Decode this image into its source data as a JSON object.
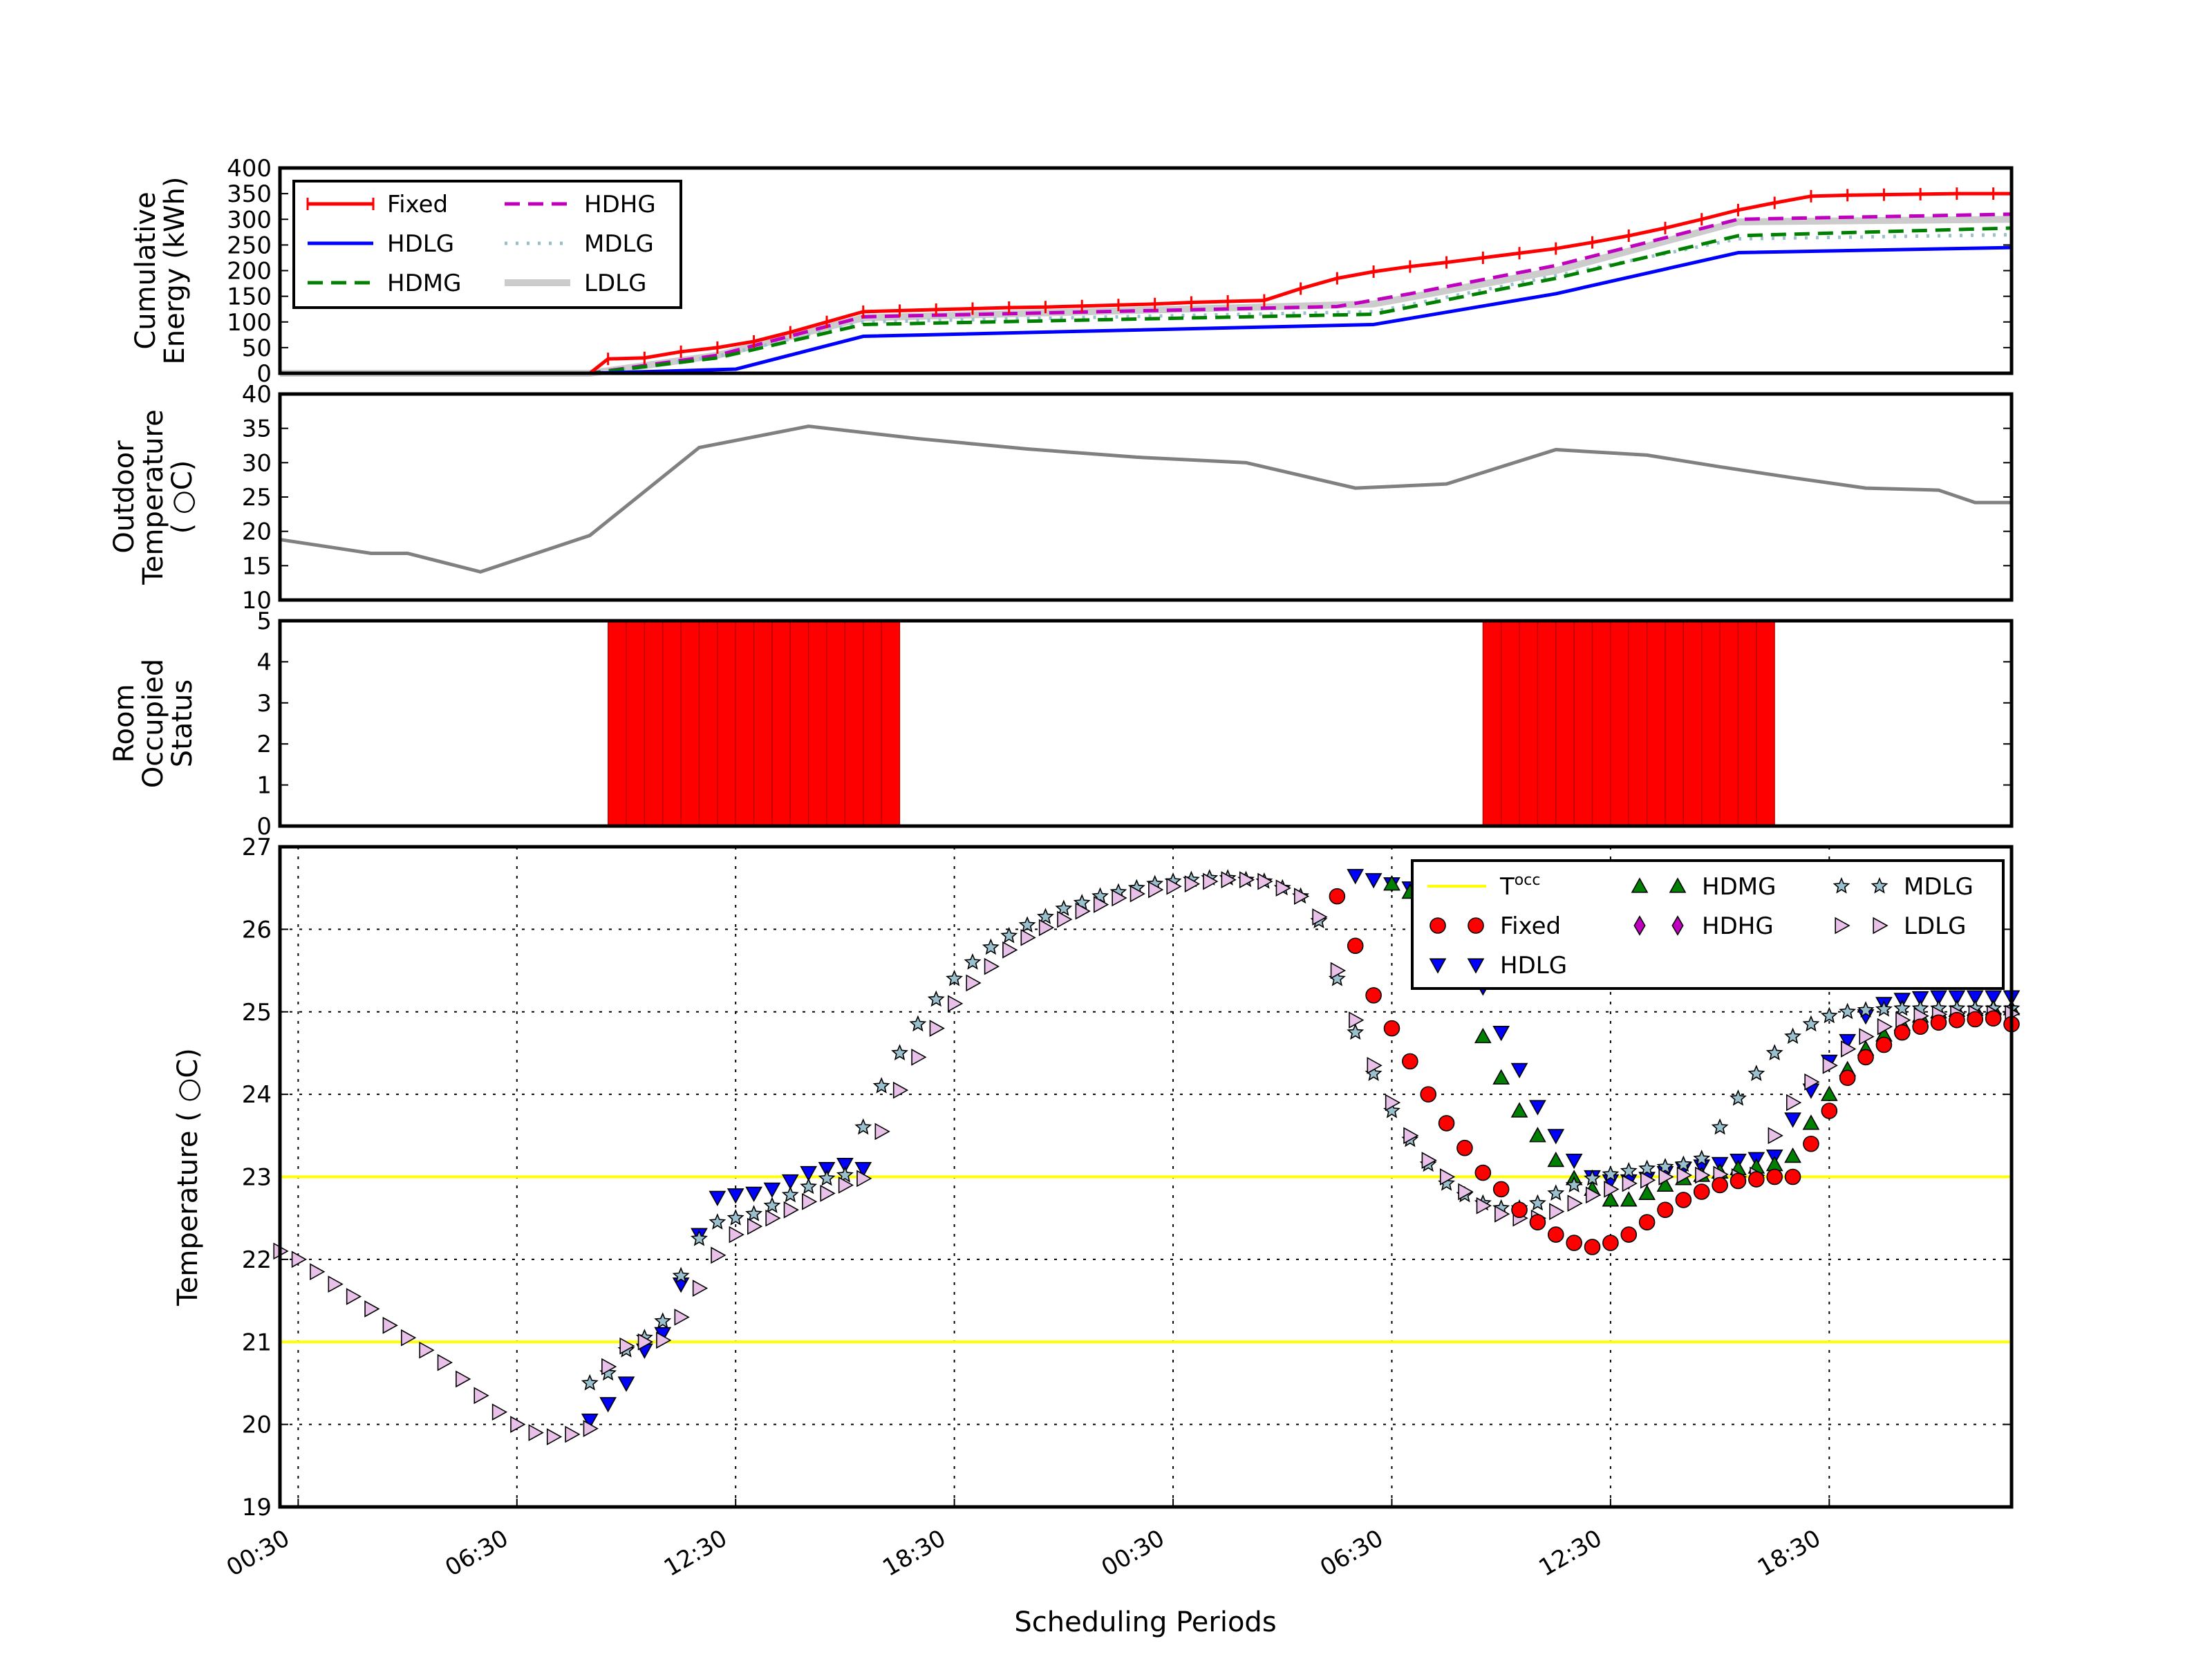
{
  "chart_data": [
    {
      "type": "line",
      "panel": "energy",
      "ylabel": [
        "Cumulative",
        "Energy (kWh)"
      ],
      "ylim": [
        0,
        400
      ],
      "yticks": [
        0,
        50,
        100,
        150,
        200,
        250,
        300,
        350,
        400
      ],
      "grid": false,
      "legend": "top-left, 2 columns",
      "series": [
        {
          "name": "Fixed",
          "color": "#ff0000",
          "style": "solid-plus",
          "x": [
            0,
            8.5,
            9,
            10,
            11,
            12,
            13,
            14,
            15,
            16,
            17,
            18,
            19,
            20,
            21,
            22,
            23,
            24,
            25,
            26,
            27,
            28,
            29,
            30,
            31,
            32,
            33,
            34,
            35,
            36,
            37,
            38,
            39,
            40,
            41,
            42,
            43,
            44,
            45,
            46,
            47,
            47.5
          ],
          "y": [
            0,
            0,
            28,
            30,
            42,
            50,
            62,
            80,
            100,
            120,
            122,
            124,
            126,
            128,
            129,
            131,
            133,
            135,
            138,
            140,
            142,
            165,
            185,
            198,
            208,
            216,
            225,
            234,
            243,
            255,
            268,
            283,
            300,
            318,
            332,
            345,
            347,
            348,
            349,
            350,
            350,
            350
          ]
        },
        {
          "name": "HDLG",
          "color": "#0000ff",
          "style": "solid",
          "x": [
            0,
            8.5,
            12.5,
            16,
            30,
            35,
            40,
            47.5
          ],
          "y": [
            0,
            0,
            8,
            72,
            95,
            155,
            235,
            245
          ]
        },
        {
          "name": "HDMG",
          "color": "#008000",
          "style": "dashed",
          "x": [
            0,
            8.5,
            12,
            16,
            30,
            35,
            40,
            47.5
          ],
          "y": [
            0,
            0,
            30,
            95,
            115,
            185,
            268,
            283
          ]
        },
        {
          "name": "HDHG",
          "color": "#bf00bf",
          "style": "dashed",
          "x": [
            0,
            8.5,
            12,
            16,
            29,
            31,
            35,
            40,
            47.5
          ],
          "y": [
            0,
            0,
            35,
            110,
            130,
            155,
            210,
            300,
            310
          ]
        },
        {
          "name": "MDLG",
          "color": "#9ac0cd",
          "style": "dotted",
          "x": [
            0,
            8.5,
            12,
            16,
            30,
            35,
            40,
            47.5
          ],
          "y": [
            0,
            0,
            33,
            100,
            120,
            190,
            262,
            270
          ]
        },
        {
          "name": "LDLG",
          "color": "#cccccc",
          "style": "solid-thick",
          "x": [
            0,
            8.5,
            12,
            16,
            30,
            35,
            40,
            47.5
          ],
          "y": [
            0,
            0,
            35,
            108,
            135,
            200,
            295,
            300
          ]
        }
      ]
    },
    {
      "type": "line",
      "panel": "outdoor",
      "ylabel": [
        "Outdoor",
        "Temperature",
        "( ○C)"
      ],
      "ylim": [
        10,
        40
      ],
      "yticks": [
        10,
        15,
        20,
        25,
        30,
        35,
        40
      ],
      "grid": false,
      "series": [
        {
          "color": "#808080",
          "x": [
            0,
            2.5,
            3.5,
            5.5,
            8.5,
            11.5,
            14.5,
            17.5,
            20.5,
            23.5,
            26.5,
            29.5,
            32,
            35,
            37.5,
            39.5,
            41.5,
            43.5,
            45.5,
            46.5,
            47.5
          ],
          "y": [
            18.8,
            16.8,
            16.8,
            14.1,
            19.4,
            32.2,
            35.3,
            33.5,
            32,
            30.8,
            30,
            26.3,
            26.9,
            31.9,
            31.1,
            29.4,
            27.8,
            26.3,
            26,
            24.2,
            24.2
          ]
        }
      ]
    },
    {
      "type": "bar",
      "panel": "occupancy",
      "ylabel": [
        "Room",
        "Occupied",
        "Status"
      ],
      "ylim": [
        0,
        5
      ],
      "yticks": [
        0,
        1,
        2,
        3,
        4,
        5
      ],
      "grid": false,
      "color": "#ff0000",
      "bar_start": [
        9,
        9.5,
        10,
        10.5,
        11,
        11.5,
        12,
        12.5,
        13,
        13.5,
        14,
        14.5,
        15,
        15.5,
        16,
        16.5,
        33,
        33.5,
        34,
        34.5,
        35,
        35.5,
        36,
        36.5,
        37,
        37.5,
        38,
        38.5,
        39,
        39.5,
        40,
        40.5
      ],
      "bar_value": 5
    },
    {
      "type": "scatter",
      "panel": "indoor",
      "xlabel": "Scheduling Periods",
      "ylabel": "Temperature ( ○C)",
      "ylim": [
        19,
        27
      ],
      "yticks": [
        19,
        20,
        21,
        22,
        23,
        24,
        25,
        26,
        27
      ],
      "xticks": [
        "00:30",
        "06:30",
        "12:30",
        "18:30",
        "00:30",
        "06:30",
        "12:30",
        "18:30"
      ],
      "grid": true,
      "legend": "top-right, 3 columns",
      "limits": {
        "name": "T^occ",
        "color": "#ffff00",
        "values": [
          21,
          23
        ]
      },
      "series": [
        {
          "name": "Fixed",
          "marker": "circle",
          "color": "#ff0000",
          "x": [
            29,
            29.5,
            30,
            30.5,
            31,
            31.5,
            32,
            32.5,
            33,
            33.5,
            34,
            34.5,
            35,
            35.5,
            36,
            36.5,
            37,
            37.5,
            38,
            38.5,
            39,
            39.5,
            40,
            40.5,
            41,
            41.5,
            42,
            42.5,
            43,
            43.5,
            44,
            44.5,
            45,
            45.5,
            46,
            46.5,
            47,
            47.5
          ],
          "y": [
            26.4,
            25.8,
            25.2,
            24.8,
            24.4,
            24,
            23.65,
            23.35,
            23.05,
            22.85,
            22.6,
            22.45,
            22.3,
            22.2,
            22.15,
            22.2,
            22.3,
            22.45,
            22.6,
            22.72,
            22.82,
            22.9,
            22.95,
            22.97,
            23,
            23,
            23.4,
            23.8,
            24.2,
            24.45,
            24.6,
            24.75,
            24.82,
            24.87,
            24.9,
            24.91,
            24.92,
            24.85
          ]
        },
        {
          "name": "HDLG",
          "marker": "triangle-down",
          "color": "#0000ff",
          "x": [
            8.5,
            9,
            9.5,
            10,
            10.5,
            11,
            11.5,
            12,
            12.5,
            13,
            13.5,
            14,
            14.5,
            15,
            15.5,
            16,
            29.5,
            30,
            30.5,
            31,
            31.5,
            32,
            32.5,
            33,
            33.5,
            34,
            34.5,
            35,
            35.5,
            36,
            36.5,
            37,
            37.5,
            38,
            38.5,
            39,
            39.5,
            40,
            40.5,
            41,
            41.5,
            42,
            42.5,
            43,
            43.5,
            44,
            44.5,
            45,
            45.5,
            46,
            46.5,
            47,
            47.5
          ],
          "y": [
            20.05,
            20.25,
            20.5,
            20.9,
            21.1,
            21.7,
            22.3,
            22.75,
            22.78,
            22.8,
            22.85,
            22.95,
            23.05,
            23.1,
            23.15,
            23.1,
            26.65,
            26.6,
            26.55,
            26.5,
            26.4,
            26.3,
            26.05,
            25.3,
            24.75,
            24.3,
            23.85,
            23.5,
            23.2,
            23,
            22.95,
            22.95,
            22.98,
            23.05,
            23.1,
            23.13,
            23.16,
            23.2,
            23.22,
            23.25,
            23.7,
            24.05,
            24.4,
            24.65,
            24.95,
            25.1,
            25.15,
            25.17,
            25.18,
            25.18,
            25.18,
            25.18,
            25.18
          ]
        },
        {
          "name": "HDMG",
          "marker": "triangle-up",
          "color": "#008000",
          "x": [
            30.5,
            31,
            31.5,
            32,
            32.5,
            33,
            33.5,
            34,
            34.5,
            35,
            35.5,
            36,
            36.5,
            37,
            37.5,
            38,
            38.5,
            39,
            39.5,
            40,
            40.5,
            41,
            41.5,
            42,
            42.5,
            43,
            43.5,
            44,
            44.5,
            45,
            45.5,
            46,
            46.5,
            47,
            47.5
          ],
          "y": [
            26.55,
            26.45,
            26.3,
            26.1,
            25.35,
            24.7,
            24.2,
            23.8,
            23.5,
            23.2,
            22.98,
            22.85,
            22.72,
            22.72,
            22.8,
            22.9,
            22.98,
            23.02,
            23.06,
            23.1,
            23.12,
            23.15,
            23.25,
            23.65,
            24,
            24.3,
            24.55,
            24.72,
            24.85,
            24.95,
            25,
            25.02,
            25.03,
            25.04,
            25.04
          ]
        },
        {
          "name": "HDHG",
          "marker": "diamond",
          "color": "#bf00bf",
          "x": [],
          "y": []
        },
        {
          "name": "MDLG",
          "marker": "star",
          "color": "#9ac0cd",
          "x": [
            8.5,
            9,
            9.5,
            10,
            10.5,
            11,
            11.5,
            12,
            12.5,
            13,
            13.5,
            14,
            14.5,
            15,
            15.5,
            16,
            16.5,
            17,
            17.5,
            18,
            18.5,
            19,
            19.5,
            20,
            20.5,
            21,
            21.5,
            22,
            22.5,
            23,
            23.5,
            24,
            24.5,
            25,
            25.5,
            26,
            26.5,
            27,
            27.5,
            28,
            28.5,
            29,
            29.5,
            30,
            30.5,
            31,
            31.5,
            32,
            32.5,
            33,
            33.5,
            34,
            34.5,
            35,
            35.5,
            36,
            36.5,
            37,
            37.5,
            38,
            38.5,
            39,
            39.5,
            40,
            40.5,
            41,
            41.5,
            42,
            42.5,
            43,
            43.5,
            44,
            44.5,
            45,
            45.5,
            46,
            46.5,
            47,
            47.5
          ],
          "y": [
            20.5,
            20.62,
            20.9,
            21.05,
            21.25,
            21.8,
            22.25,
            22.45,
            22.5,
            22.55,
            22.65,
            22.78,
            22.88,
            22.98,
            23.02,
            23.6,
            24.1,
            24.5,
            24.85,
            25.15,
            25.4,
            25.6,
            25.78,
            25.92,
            26.05,
            26.15,
            26.25,
            26.32,
            26.4,
            26.45,
            26.5,
            26.55,
            26.58,
            26.6,
            26.62,
            26.62,
            26.6,
            26.58,
            26.5,
            26.4,
            26.1,
            25.4,
            24.75,
            24.25,
            23.8,
            23.45,
            23.15,
            22.92,
            22.78,
            22.68,
            22.62,
            22.62,
            22.68,
            22.8,
            22.9,
            22.98,
            23.03,
            23.07,
            23.1,
            23.12,
            23.15,
            23.22,
            23.6,
            23.95,
            24.25,
            24.5,
            24.7,
            24.85,
            24.95,
            25,
            25.02,
            25.03,
            25.04,
            25.04,
            25.04,
            25.04,
            25.04,
            25.04,
            25.04
          ]
        },
        {
          "name": "LDLG",
          "marker": "triangle-right",
          "color": "#e8c0e8",
          "x": [
            0,
            0.5,
            1,
            1.5,
            2,
            2.5,
            3,
            3.5,
            4,
            4.5,
            5,
            5.5,
            6,
            6.5,
            7,
            7.5,
            8,
            8.5,
            9,
            9.5,
            10,
            10.5,
            11,
            11.5,
            12,
            12.5,
            13,
            13.5,
            14,
            14.5,
            15,
            15.5,
            16,
            16.5,
            17,
            17.5,
            18,
            18.5,
            19,
            19.5,
            20,
            20.5,
            21,
            21.5,
            22,
            22.5,
            23,
            23.5,
            24,
            24.5,
            25,
            25.5,
            26,
            26.5,
            27,
            27.5,
            28,
            28.5,
            29,
            29.5,
            30,
            30.5,
            31,
            31.5,
            32,
            32.5,
            33,
            33.5,
            34,
            34.5,
            35,
            35.5,
            36,
            36.5,
            37,
            37.5,
            38,
            38.5,
            39,
            39.5,
            40,
            40.5,
            41,
            41.5,
            42,
            42.5,
            43,
            43.5,
            44,
            44.5,
            45,
            45.5,
            46,
            46.5,
            47,
            47.5
          ],
          "y": [
            22.1,
            22,
            21.85,
            21.7,
            21.55,
            21.4,
            21.2,
            21.05,
            20.9,
            20.75,
            20.55,
            20.35,
            20.15,
            20,
            19.9,
            19.85,
            19.88,
            19.95,
            20.7,
            20.95,
            21,
            21.02,
            21.3,
            21.65,
            22.05,
            22.3,
            22.4,
            22.5,
            22.6,
            22.7,
            22.8,
            22.9,
            22.98,
            23.55,
            24.05,
            24.45,
            24.8,
            25.1,
            25.35,
            25.55,
            25.75,
            25.9,
            26.02,
            26.12,
            26.22,
            26.3,
            26.38,
            26.43,
            26.48,
            26.52,
            26.55,
            26.58,
            26.6,
            26.6,
            26.58,
            26.5,
            26.4,
            26.15,
            25.5,
            24.9,
            24.35,
            23.9,
            23.5,
            23.2,
            23,
            22.82,
            22.65,
            22.55,
            22.5,
            22.5,
            22.58,
            22.68,
            22.78,
            22.85,
            22.92,
            22.96,
            23,
            23.02,
            23.02,
            23.03,
            23,
            23.02,
            23.5,
            23.9,
            24.15,
            24.35,
            24.55,
            24.7,
            24.82,
            24.9,
            24.95,
            24.97,
            24.98,
            24.98,
            24.98,
            24.98
          ]
        }
      ]
    }
  ],
  "legend_energy": [
    {
      "name": "Fixed",
      "color": "#ff0000",
      "style": "solid-plus"
    },
    {
      "name": "HDLG",
      "color": "#0000ff",
      "style": "solid"
    },
    {
      "name": "HDMG",
      "color": "#008000",
      "style": "dashed"
    },
    {
      "name": "HDHG",
      "color": "#bf00bf",
      "style": "dashed"
    },
    {
      "name": "MDLG",
      "color": "#9ac0cd",
      "style": "dotted"
    },
    {
      "name": "LDLG",
      "color": "#cccccc",
      "style": "solid-thick"
    }
  ],
  "legend_indoor": [
    {
      "name": "T",
      "sup": "occ",
      "kind": "line",
      "color": "#ffff00"
    },
    {
      "name": "Fixed",
      "kind": "circle",
      "color": "#ff0000"
    },
    {
      "name": "HDLG",
      "kind": "triangle-down",
      "color": "#0000ff"
    },
    {
      "name": "HDMG",
      "kind": "triangle-up",
      "color": "#008000"
    },
    {
      "name": "HDHG",
      "kind": "diamond",
      "color": "#bf00bf"
    },
    {
      "name": "MDLG",
      "kind": "star",
      "color": "#9ac0cd"
    },
    {
      "name": "LDLG",
      "kind": "triangle-right",
      "color": "#e8c0e8"
    }
  ]
}
